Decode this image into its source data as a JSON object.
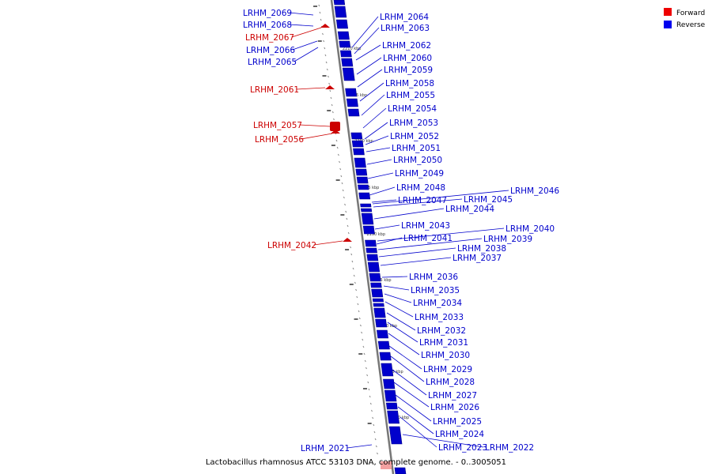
{
  "caption": "Lactobacillus rhamnosus ATCC 53103 DNA, complete genome. - 0..3005051",
  "legend": {
    "forward_label": "Forward",
    "reverse_label": "Reverse",
    "forward_color": "#ee0000",
    "reverse_color": "#0000ee"
  },
  "colors": {
    "forward": "#cc0000",
    "reverse": "#0000cc",
    "backbone": "#777777"
  },
  "tick_labels": [
    "2210 kbp",
    "2205 kbp",
    "2200 kbp",
    "2195 kbp",
    "2190 kbp",
    "2185 kbp",
    "2180 kbp",
    "2175 kbp",
    "2170 kbp"
  ],
  "genes": [
    {
      "name": "LRHM_2069",
      "strand": "reverse"
    },
    {
      "name": "LRHM_2068",
      "strand": "reverse"
    },
    {
      "name": "LRHM_2067",
      "strand": "forward"
    },
    {
      "name": "LRHM_2066",
      "strand": "reverse"
    },
    {
      "name": "LRHM_2065",
      "strand": "reverse"
    },
    {
      "name": "LRHM_2064",
      "strand": "reverse"
    },
    {
      "name": "LRHM_2063",
      "strand": "reverse"
    },
    {
      "name": "LRHM_2062",
      "strand": "reverse"
    },
    {
      "name": "LRHM_2060",
      "strand": "reverse"
    },
    {
      "name": "LRHM_2059",
      "strand": "reverse"
    },
    {
      "name": "LRHM_2061",
      "strand": "forward"
    },
    {
      "name": "LRHM_2058",
      "strand": "reverse"
    },
    {
      "name": "LRHM_2055",
      "strand": "reverse"
    },
    {
      "name": "LRHM_2054",
      "strand": "reverse"
    },
    {
      "name": "LRHM_2057",
      "strand": "forward"
    },
    {
      "name": "LRHM_2053",
      "strand": "reverse"
    },
    {
      "name": "LRHM_2056",
      "strand": "forward"
    },
    {
      "name": "LRHM_2052",
      "strand": "reverse"
    },
    {
      "name": "LRHM_2051",
      "strand": "reverse"
    },
    {
      "name": "LRHM_2050",
      "strand": "reverse"
    },
    {
      "name": "LRHM_2049",
      "strand": "reverse"
    },
    {
      "name": "LRHM_2048",
      "strand": "reverse"
    },
    {
      "name": "LRHM_2046",
      "strand": "reverse"
    },
    {
      "name": "LRHM_2045",
      "strand": "reverse"
    },
    {
      "name": "LRHM_2047",
      "strand": "reverse"
    },
    {
      "name": "LRHM_2044",
      "strand": "reverse"
    },
    {
      "name": "LRHM_2043",
      "strand": "reverse"
    },
    {
      "name": "LRHM_2040",
      "strand": "reverse"
    },
    {
      "name": "LRHM_2041",
      "strand": "reverse"
    },
    {
      "name": "LRHM_2039",
      "strand": "reverse"
    },
    {
      "name": "LRHM_2042",
      "strand": "forward"
    },
    {
      "name": "LRHM_2038",
      "strand": "reverse"
    },
    {
      "name": "LRHM_2037",
      "strand": "reverse"
    },
    {
      "name": "LRHM_2036",
      "strand": "reverse"
    },
    {
      "name": "LRHM_2035",
      "strand": "reverse"
    },
    {
      "name": "LRHM_2034",
      "strand": "reverse"
    },
    {
      "name": "LRHM_2033",
      "strand": "reverse"
    },
    {
      "name": "LRHM_2032",
      "strand": "reverse"
    },
    {
      "name": "LRHM_2031",
      "strand": "reverse"
    },
    {
      "name": "LRHM_2030",
      "strand": "reverse"
    },
    {
      "name": "LRHM_2029",
      "strand": "reverse"
    },
    {
      "name": "LRHM_2028",
      "strand": "reverse"
    },
    {
      "name": "LRHM_2027",
      "strand": "reverse"
    },
    {
      "name": "LRHM_2026",
      "strand": "reverse"
    },
    {
      "name": "LRHM_2025",
      "strand": "reverse"
    },
    {
      "name": "LRHM_2024",
      "strand": "reverse"
    },
    {
      "name": "LRHM_2023",
      "strand": "reverse"
    },
    {
      "name": "LRHM_2022",
      "strand": "reverse"
    },
    {
      "name": "LRHM_2021",
      "strand": "reverse"
    }
  ]
}
